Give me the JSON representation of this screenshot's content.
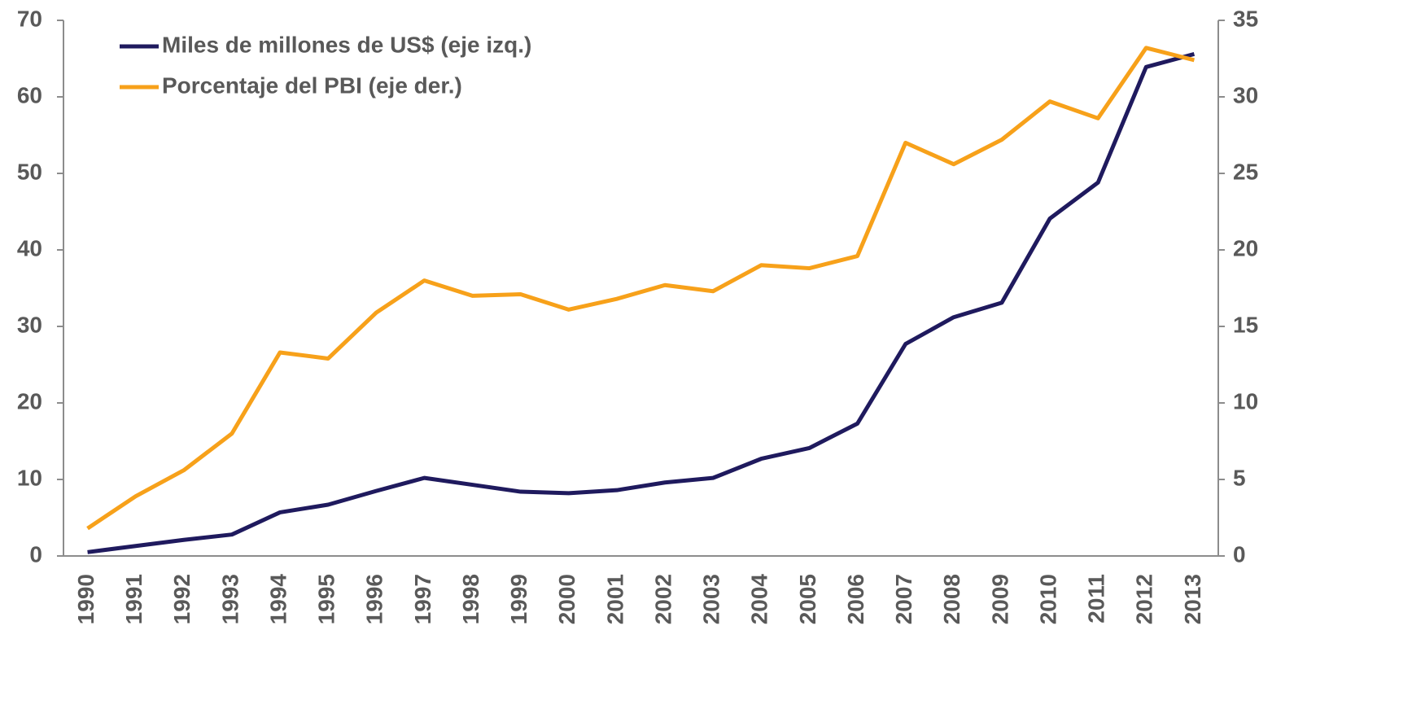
{
  "chart_data": {
    "type": "line",
    "categories": [
      "1990",
      "1991",
      "1992",
      "1993",
      "1994",
      "1995",
      "1996",
      "1997",
      "1998",
      "1999",
      "2000",
      "2001",
      "2002",
      "2003",
      "2004",
      "2005",
      "2006",
      "2007",
      "2008",
      "2009",
      "2010",
      "2011",
      "2012",
      "2013"
    ],
    "series": [
      {
        "name": "Miles de millones de US$ (eje izq.)",
        "color": "#1f1a5e",
        "values": [
          0.5,
          1.3,
          2.1,
          2.8,
          5.7,
          6.7,
          8.5,
          10.2,
          9.3,
          8.4,
          8.2,
          8.6,
          9.6,
          10.2,
          12.7,
          14.1,
          17.3,
          27.7,
          31.2,
          33.1,
          44.1,
          48.8,
          63.9,
          65.6
        ]
      },
      {
        "name": "Porcentaje del PBI (eje der.)",
        "color": "#f7a11a",
        "axis": "y2",
        "values": [
          1.8,
          3.9,
          5.6,
          8.0,
          13.3,
          12.9,
          15.9,
          18.0,
          17.0,
          17.1,
          16.1,
          16.8,
          17.7,
          17.3,
          19.0,
          18.8,
          19.6,
          27.0,
          25.6,
          27.2,
          29.7,
          28.6,
          33.2,
          32.4
        ]
      }
    ],
    "ylim": [
      0,
      70
    ],
    "yticks": [
      0,
      10,
      20,
      30,
      40,
      50,
      60,
      70
    ],
    "y2lim": [
      0,
      35
    ],
    "y2ticks": [
      0,
      5,
      10,
      15,
      20,
      25,
      30,
      35
    ],
    "legend": "upper left"
  }
}
